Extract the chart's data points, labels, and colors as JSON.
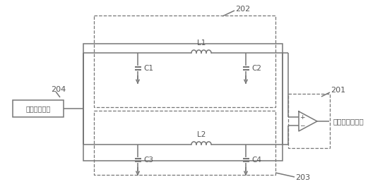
{
  "bg_color": "#ffffff",
  "line_color": "#777777",
  "text_color": "#555555",
  "label_202": "202",
  "label_201": "201",
  "label_203": "203",
  "label_204": "204",
  "label_L1": "L1",
  "label_L2": "L2",
  "label_C1": "C1",
  "label_C2": "C2",
  "label_C3": "C3",
  "label_C4": "C4",
  "label_antenna": "实际手机天线",
  "label_phone": "手机信号输入端",
  "figsize": [
    5.38,
    2.78
  ],
  "dpi": 100
}
